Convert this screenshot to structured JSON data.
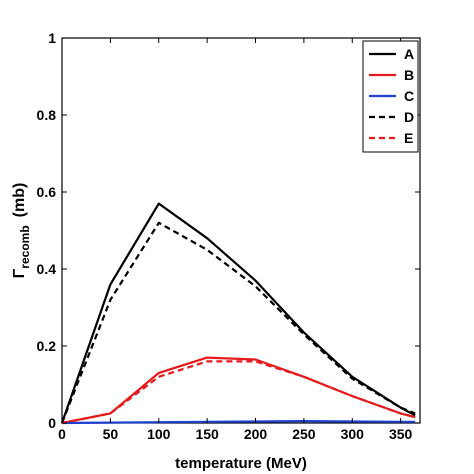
{
  "chart_data": {
    "type": "line",
    "title": "",
    "xlabel": "temperature (MeV)",
    "ylabel_symbol": "Γ",
    "ylabel_sub": "recomb",
    "ylabel_unit": "(mb)",
    "xlim": [
      0,
      370
    ],
    "ylim": [
      0,
      1
    ],
    "xticks": [
      0,
      50,
      100,
      150,
      200,
      250,
      300,
      350
    ],
    "yticks": [
      0,
      0.2,
      0.4,
      0.6,
      0.8,
      1
    ],
    "ytick_labels": [
      "0",
      "0.2",
      "0.4",
      "0.6",
      "0.8",
      "1"
    ],
    "grid": false,
    "legend_position": "top-right",
    "series": [
      {
        "name": "A",
        "color": "#000000",
        "dash": "solid",
        "x": [
          0,
          50,
          100,
          150,
          200,
          250,
          300,
          350,
          365
        ],
        "y": [
          0,
          0.36,
          0.57,
          0.48,
          0.37,
          0.235,
          0.12,
          0.04,
          0.02
        ]
      },
      {
        "name": "B",
        "color": "#e41a1c",
        "dash": "solid",
        "x": [
          0,
          50,
          100,
          150,
          200,
          250,
          300,
          350,
          365
        ],
        "y": [
          0,
          0.025,
          0.13,
          0.17,
          0.165,
          0.12,
          0.07,
          0.025,
          0.015
        ]
      },
      {
        "name": "C",
        "color": "#1f3fd1",
        "dash": "solid",
        "x": [
          0,
          50,
          100,
          150,
          200,
          250,
          300,
          350,
          365
        ],
        "y": [
          0,
          0.001,
          0.002,
          0.003,
          0.004,
          0.005,
          0.004,
          0.003,
          0.003
        ]
      },
      {
        "name": "D",
        "color": "#000000",
        "dash": "dashed",
        "x": [
          0,
          50,
          100,
          150,
          200,
          250,
          300,
          350,
          365
        ],
        "y": [
          0,
          0.32,
          0.52,
          0.45,
          0.355,
          0.23,
          0.115,
          0.04,
          0.025
        ]
      },
      {
        "name": "E",
        "color": "#e41a1c",
        "dash": "dashed",
        "x": [
          0,
          50,
          100,
          150,
          200,
          250,
          300,
          350,
          365
        ],
        "y": [
          0,
          0.025,
          0.12,
          0.16,
          0.16,
          0.12,
          0.07,
          0.025,
          0.015
        ]
      }
    ]
  }
}
